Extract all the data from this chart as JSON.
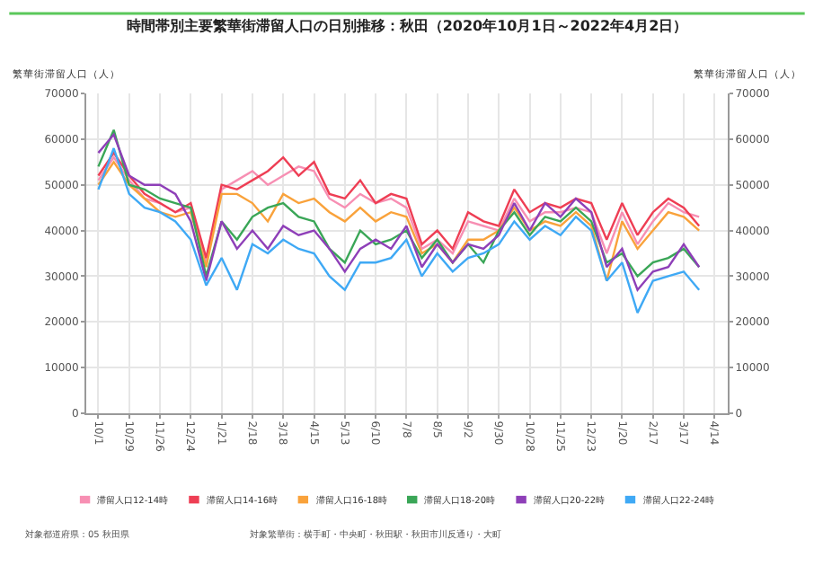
{
  "chart_data": {
    "type": "line",
    "title": "時間帯別主要繁華街滞留人口の日別推移：秋田（2020年10月1日～2022年4月2日）",
    "ylabel": "繁華街滞留人口（人）",
    "y2label": "繁華街滞留人口（人）",
    "x": [
      "2020-10-01",
      "2020-10-15",
      "2020-10-29",
      "2020-11-12",
      "2020-11-26",
      "2020-12-10",
      "2020-12-24",
      "2021-01-07",
      "2021-01-21",
      "2021-02-04",
      "2021-02-18",
      "2021-03-04",
      "2021-03-18",
      "2021-04-01",
      "2021-04-15",
      "2021-04-29",
      "2021-05-13",
      "2021-05-27",
      "2021-06-10",
      "2021-06-24",
      "2021-07-08",
      "2021-07-22",
      "2021-08-05",
      "2021-08-19",
      "2021-09-02",
      "2021-09-16",
      "2021-09-30",
      "2021-10-14",
      "2021-10-28",
      "2021-11-11",
      "2021-11-25",
      "2021-12-09",
      "2021-12-23",
      "2022-01-06",
      "2022-01-20",
      "2022-02-03",
      "2022-02-17",
      "2022-03-03",
      "2022-03-17",
      "2022-03-31"
    ],
    "series": [
      {
        "name": "滞留人口12-14時",
        "color": "#f78fb3",
        "values": [
          51000,
          56000,
          51000,
          47000,
          46000,
          44000,
          45000,
          33000,
          49000,
          51000,
          53000,
          50000,
          52000,
          54000,
          53000,
          47000,
          45000,
          48000,
          46000,
          47000,
          45000,
          36000,
          38000,
          35000,
          42000,
          41000,
          40000,
          47000,
          42000,
          44000,
          44000,
          45000,
          44000,
          35000,
          44000,
          37000,
          42000,
          46000,
          44000,
          43000
        ]
      },
      {
        "name": "滞留人口14-16時",
        "color": "#ee3e54",
        "values": [
          52000,
          57000,
          52000,
          48000,
          46000,
          44000,
          46000,
          34000,
          50000,
          49000,
          51000,
          53000,
          56000,
          52000,
          55000,
          48000,
          47000,
          51000,
          46000,
          48000,
          47000,
          37000,
          40000,
          36000,
          44000,
          42000,
          41000,
          49000,
          44000,
          46000,
          45000,
          47000,
          46000,
          38000,
          46000,
          39000,
          44000,
          47000,
          45000,
          41000
        ]
      },
      {
        "name": "滞留人口16-18時",
        "color": "#f9a23b",
        "values": [
          50000,
          55000,
          50000,
          47000,
          44000,
          43000,
          44000,
          32000,
          48000,
          48000,
          46000,
          42000,
          48000,
          46000,
          47000,
          44000,
          42000,
          45000,
          42000,
          44000,
          43000,
          35000,
          37000,
          33000,
          38000,
          38000,
          40000,
          45000,
          40000,
          42000,
          41000,
          44000,
          41000,
          29000,
          42000,
          36000,
          40000,
          44000,
          43000,
          40000
        ]
      },
      {
        "name": "滞留人口18-20時",
        "color": "#3aa657",
        "values": [
          54000,
          62000,
          50000,
          49000,
          47000,
          46000,
          45000,
          30000,
          42000,
          38000,
          43000,
          45000,
          46000,
          43000,
          42000,
          36000,
          33000,
          40000,
          37000,
          38000,
          40000,
          34000,
          38000,
          33000,
          37000,
          33000,
          40000,
          44000,
          39000,
          43000,
          42000,
          45000,
          42000,
          33000,
          35000,
          30000,
          33000,
          34000,
          36000,
          32000
        ]
      },
      {
        "name": "滞留人口20-22時",
        "color": "#8e3fb8",
        "values": [
          57000,
          61000,
          52000,
          50000,
          50000,
          48000,
          42000,
          29000,
          42000,
          36000,
          40000,
          36000,
          41000,
          39000,
          40000,
          36000,
          31000,
          36000,
          38000,
          36000,
          41000,
          32000,
          37000,
          33000,
          37000,
          36000,
          39000,
          46000,
          40000,
          46000,
          43000,
          47000,
          44000,
          32000,
          36000,
          27000,
          31000,
          32000,
          37000,
          32000
        ]
      },
      {
        "name": "滞留人口22-24時",
        "color": "#3fa9f5",
        "values": [
          49000,
          58000,
          48000,
          45000,
          44000,
          42000,
          38000,
          28000,
          34000,
          27000,
          37000,
          35000,
          38000,
          36000,
          35000,
          30000,
          27000,
          33000,
          33000,
          34000,
          38000,
          30000,
          35000,
          31000,
          34000,
          35000,
          37000,
          42000,
          38000,
          41000,
          39000,
          43000,
          40000,
          29000,
          33000,
          22000,
          29000,
          30000,
          31000,
          27000
        ]
      }
    ],
    "xlim": [
      "2020-09-20",
      "2022-04-26"
    ],
    "xticks": [
      {
        "value": "2020-10-01",
        "label": "10/1"
      },
      {
        "value": "2020-10-29",
        "label": "10/29"
      },
      {
        "value": "2020-11-26",
        "label": "11/26"
      },
      {
        "value": "2020-12-24",
        "label": "12/24"
      },
      {
        "value": "2021-01-21",
        "label": "1/21"
      },
      {
        "value": "2021-02-18",
        "label": "2/18"
      },
      {
        "value": "2021-03-18",
        "label": "3/18"
      },
      {
        "value": "2021-04-15",
        "label": "4/15"
      },
      {
        "value": "2021-05-13",
        "label": "5/13"
      },
      {
        "value": "2021-06-10",
        "label": "6/10"
      },
      {
        "value": "2021-07-08",
        "label": "7/8"
      },
      {
        "value": "2021-08-05",
        "label": "8/5"
      },
      {
        "value": "2021-09-02",
        "label": "9/2"
      },
      {
        "value": "2021-09-30",
        "label": "9/30"
      },
      {
        "value": "2021-10-28",
        "label": "10/28"
      },
      {
        "value": "2021-11-25",
        "label": "11/25"
      },
      {
        "value": "2021-12-23",
        "label": "12/23"
      },
      {
        "value": "2022-01-20",
        "label": "1/20"
      },
      {
        "value": "2022-02-17",
        "label": "2/17"
      },
      {
        "value": "2022-03-17",
        "label": "3/17"
      },
      {
        "value": "2022-04-14",
        "label": "4/14"
      }
    ],
    "ylim": [
      0,
      70000
    ],
    "yticks": [
      0,
      10000,
      20000,
      30000,
      40000,
      50000,
      60000,
      70000
    ],
    "y2lim": [
      0,
      70000
    ],
    "y2ticks": [
      0,
      10000,
      20000,
      30000,
      40000,
      50000,
      60000,
      70000
    ],
    "grid": true,
    "legend": "bottom",
    "marker": "none",
    "line_style": "solid",
    "annotations": [
      "対象都道府県：05 秋田県",
      "対象繁華街：横手町・中央町・秋田駅・秋田市川反通り・大町"
    ]
  }
}
